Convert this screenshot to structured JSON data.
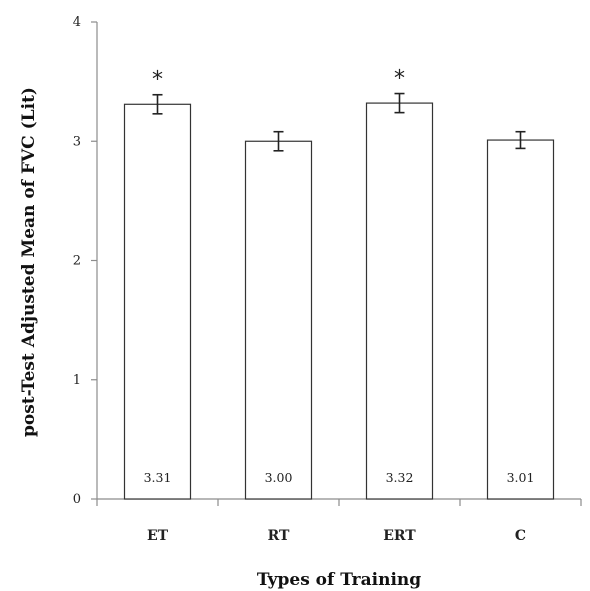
{
  "chart_data": {
    "type": "bar",
    "categories": [
      "ET",
      "RT",
      "ERT",
      "C"
    ],
    "values": [
      3.31,
      3.0,
      3.32,
      3.01
    ],
    "data_labels": [
      "3.31",
      "3.00",
      "3.32",
      "3.01"
    ],
    "error": [
      0.08,
      0.08,
      0.08,
      0.07
    ],
    "significance": [
      "*",
      "",
      "*",
      ""
    ],
    "xlabel": "Types of Training",
    "ylabel": "post-Test Adjusted Mean of FVC (Lit)",
    "ylim": [
      0,
      4
    ],
    "yticks": [
      "0",
      "1",
      "2",
      "3",
      "4"
    ],
    "grid": false,
    "colors": {
      "bar_fill": "#ffffff",
      "bar_stroke": "#333333",
      "axis": "#8c8c8c"
    }
  }
}
